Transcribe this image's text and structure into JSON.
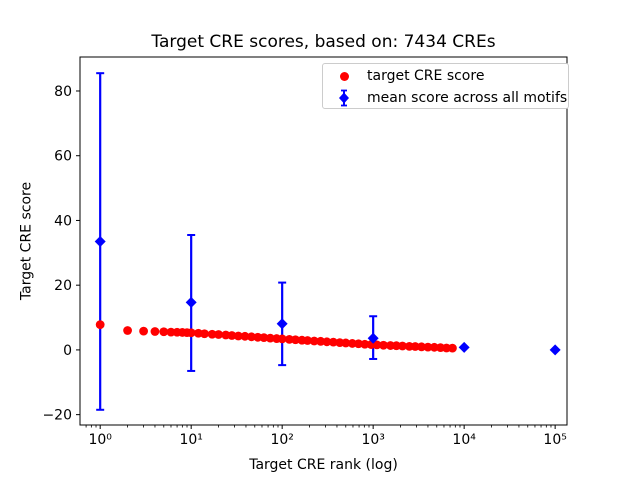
{
  "figure": {
    "title": "Target CRE scores, based on: 7434 CREs",
    "xlabel": "Target CRE rank (log)",
    "ylabel": "Target CRE score"
  },
  "colors": {
    "target_series": "#ff0000",
    "mean_series": "#0000ff",
    "legend_border": "#cccccc",
    "axes": "#000000",
    "background": "#ffffff"
  },
  "legend": {
    "position": "upper right",
    "items": [
      {
        "label": "target CRE score",
        "marker": "red-circle"
      },
      {
        "label": "mean score across all motifs",
        "marker": "blue-diamond-errorbar"
      }
    ]
  },
  "chart_data": {
    "type": "scatter",
    "title": "Target CRE scores, based on: 7434 CREs",
    "xlabel": "Target CRE rank (log)",
    "ylabel": "Target CRE score",
    "x_scale": "log",
    "y_scale": "linear",
    "grid": false,
    "legend_position": "upper right",
    "xlim": [
      0.6,
      135000
    ],
    "ylim": [
      -23.2,
      90.5
    ],
    "x_ticks": [
      {
        "value": 1,
        "label": "10⁰"
      },
      {
        "value": 10,
        "label": "10¹"
      },
      {
        "value": 100,
        "label": "10²"
      },
      {
        "value": 1000,
        "label": "10³"
      },
      {
        "value": 10000,
        "label": "10⁴"
      },
      {
        "value": 100000,
        "label": "10⁵"
      }
    ],
    "y_ticks": [
      {
        "value": -20,
        "label": "−20"
      },
      {
        "value": 0,
        "label": "0"
      },
      {
        "value": 20,
        "label": "20"
      },
      {
        "value": 40,
        "label": "40"
      },
      {
        "value": 60,
        "label": "60"
      },
      {
        "value": 80,
        "label": "80"
      }
    ],
    "series": [
      {
        "name": "target CRE score",
        "type": "scatter",
        "marker": "circle",
        "color": "#ff0000",
        "n_points_depicted": 7434,
        "points": [
          [
            1,
            7.8
          ],
          [
            2,
            6.0
          ],
          [
            3,
            5.8
          ],
          [
            4,
            5.7
          ],
          [
            5,
            5.6
          ],
          [
            6,
            5.5
          ],
          [
            7,
            5.45
          ],
          [
            8,
            5.4
          ],
          [
            9,
            5.35
          ],
          [
            10,
            5.3
          ],
          [
            12,
            5.15
          ],
          [
            14,
            5.0
          ],
          [
            17,
            4.85
          ],
          [
            20,
            4.75
          ],
          [
            24,
            4.6
          ],
          [
            28,
            4.45
          ],
          [
            33,
            4.3
          ],
          [
            39,
            4.2
          ],
          [
            46,
            4.05
          ],
          [
            54,
            3.9
          ],
          [
            63,
            3.8
          ],
          [
            74,
            3.65
          ],
          [
            87,
            3.5
          ],
          [
            100,
            3.4
          ],
          [
            120,
            3.25
          ],
          [
            140,
            3.15
          ],
          [
            165,
            3.0
          ],
          [
            190,
            2.9
          ],
          [
            225,
            2.75
          ],
          [
            265,
            2.65
          ],
          [
            310,
            2.5
          ],
          [
            365,
            2.4
          ],
          [
            430,
            2.25
          ],
          [
            500,
            2.15
          ],
          [
            590,
            2.0
          ],
          [
            690,
            1.9
          ],
          [
            810,
            1.75
          ],
          [
            950,
            1.65
          ],
          [
            1100,
            1.55
          ],
          [
            1300,
            1.45
          ],
          [
            1550,
            1.35
          ],
          [
            1800,
            1.3
          ],
          [
            2100,
            1.2
          ],
          [
            2500,
            1.1
          ],
          [
            2900,
            1.05
          ],
          [
            3400,
            0.95
          ],
          [
            4000,
            0.85
          ],
          [
            4700,
            0.8
          ],
          [
            5500,
            0.7
          ],
          [
            6400,
            0.6
          ],
          [
            7434,
            0.55
          ]
        ]
      },
      {
        "name": "mean score across all motifs",
        "type": "errorbar",
        "marker": "diamond",
        "color": "#0000ff",
        "points": [
          {
            "x": 1,
            "y": 33.5,
            "lo": -18.5,
            "hi": 85.5
          },
          {
            "x": 10,
            "y": 14.7,
            "lo": -6.5,
            "hi": 35.5
          },
          {
            "x": 100,
            "y": 8.1,
            "lo": -4.7,
            "hi": 20.8
          },
          {
            "x": 1000,
            "y": 3.6,
            "lo": -2.8,
            "hi": 10.4
          },
          {
            "x": 10000,
            "y": 0.8,
            "lo": 0.8,
            "hi": 0.8
          },
          {
            "x": 100000,
            "y": 0.0,
            "lo": 0.0,
            "hi": 0.0
          }
        ]
      }
    ]
  }
}
